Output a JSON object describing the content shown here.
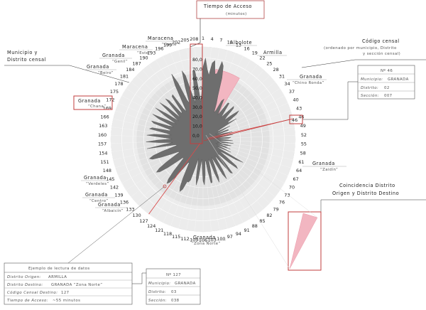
{
  "chart_data": {
    "type": "radial-bar",
    "title": "Tiempo de Acceso",
    "unit": "(minutos)",
    "radial_axis": {
      "range": [
        0,
        80
      ],
      "ticks": [
        "0,0",
        "10,0",
        "20,0",
        "30,0",
        "40,0",
        "50,0",
        "60,0",
        "70,0",
        "80,0"
      ]
    },
    "sector_codes": [
      1,
      4,
      7,
      10,
      13,
      16,
      19,
      22,
      25,
      28,
      31,
      34,
      37,
      40,
      43,
      46,
      49,
      52,
      55,
      58,
      61,
      64,
      67,
      70,
      73,
      76,
      79,
      82,
      85,
      88,
      91,
      94,
      97,
      100,
      103,
      106,
      109,
      112,
      115,
      118,
      121,
      124,
      127,
      130,
      133,
      136,
      139,
      142,
      145,
      148,
      151,
      154,
      157,
      160,
      163,
      166,
      169,
      172,
      175,
      178,
      181,
      184,
      187,
      190,
      193,
      196,
      199,
      202,
      205,
      208
    ],
    "highlighted": [
      {
        "code": 46,
        "label": "Nº 46",
        "color": "#d94b4b"
      },
      {
        "code": 127,
        "label": "Nº 127",
        "color": "#d94b4b"
      }
    ],
    "pink_wedge": {
      "from_code": 7,
      "to_code": 19,
      "color": "#e98a9c"
    }
  },
  "legend_left": {
    "title_line1": "Municipio y",
    "title_line2": "Distrito censal"
  },
  "legend_right_code": {
    "title": "Código censal",
    "subtitle1": "(ordenado por municipio, Distrito",
    "subtitle2": "y sección censal)"
  },
  "legend_right_coincidence": {
    "line1": "Coincidencia Distrito",
    "line2": "Origen y Distrito Destino"
  },
  "tooltip_46": {
    "number": "Nº 46",
    "municipio_label": "Municipio:",
    "municipio_value": "GRANADA",
    "distrito_label": "Distrito:",
    "distrito_value": "02",
    "seccion_label": "Sección:",
    "seccion_value": "007"
  },
  "box_46": "46",
  "example": {
    "title": "Ejemplo de lectura de datos",
    "rows": [
      {
        "label": "Distrito Origen:",
        "value": "ARMILLA"
      },
      {
        "label": "Distrito Destino:",
        "value": "GRANADA “Zona Norte”"
      },
      {
        "label": "Código Censal Destino:",
        "value": "127"
      },
      {
        "label": "Tiempo de Acceso:",
        "value": "~55 minutos"
      }
    ]
  },
  "tooltip_127": {
    "number": "Nº 127",
    "municipio_label": "Municipio:",
    "municipio_value": "GRANADA",
    "distrito_label": "Distrito:",
    "distrito_value": "03",
    "seccion_label": "Sección:",
    "seccion_value": "038"
  },
  "zone_labels": {
    "maracena_a": "Maracena",
    "maracena_a_sub": "“Oeste”",
    "maracena_b": "Maracena",
    "maracena_b_sub": "“Este”",
    "albolote": "Albolote",
    "armilla": "Armilla",
    "granada_genil": "Granada",
    "granada_genil_sub": "“Genil”",
    "granada_beiro": "Granada",
    "granada_beiro_sub": "“Beiro”",
    "granada_chana": "Granada",
    "granada_chana_sub": "“Chana”",
    "granada_ronda": "Granada",
    "granada_ronda_sub": "“Chino Ronda”",
    "granada_zaidin": "Granada",
    "granada_zaidin_sub": "“Zaidín”",
    "granada_verdeles": "Granada",
    "granada_verdeles_sub": "“Verdeles”",
    "granada_centro": "Granada",
    "granada_centro_sub": "“Centro”",
    "granada_albaicin": "Granada",
    "granada_albaicin_sub": "“Albaicín”",
    "granada_norte": "Granada",
    "granada_norte_sub": "“Zona Norte”"
  }
}
